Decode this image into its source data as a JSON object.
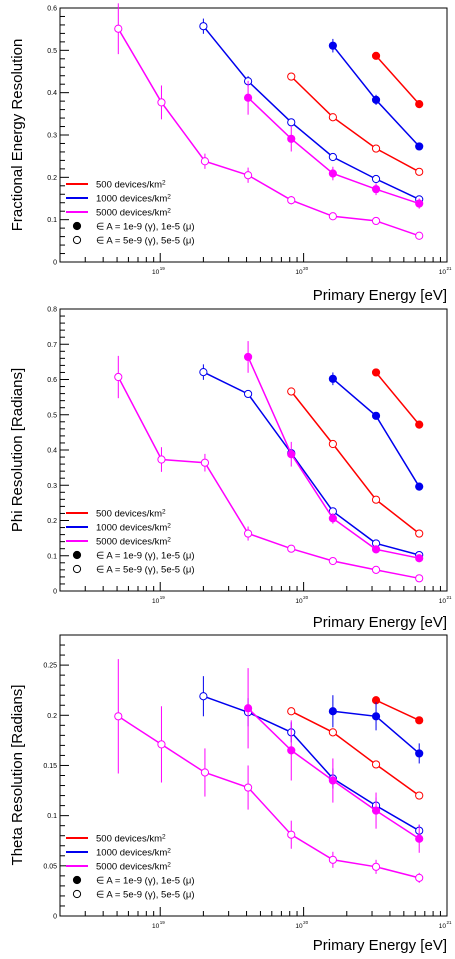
{
  "colors": {
    "red": "#ff0000",
    "blue": "#0000ee",
    "magenta": "#ff00ff",
    "axis": "#000000"
  },
  "chart_data": [
    {
      "type": "scatter",
      "xlabel": "Primary Energy [eV]",
      "ylabel": "Fractional Energy Resolution",
      "xscale": "log",
      "xlim": [
        2e+18,
        1e+21
      ],
      "ylim": [
        0,
        0.6
      ],
      "yticks": [
        "0",
        "0.1",
        "0.2",
        "0.3",
        "0.4",
        "0.5",
        "0.6"
      ],
      "yticks_values": [
        0,
        0.1,
        0.2,
        0.3,
        0.4,
        0.5,
        0.6
      ],
      "xticks": [
        "10",
        "10",
        "10"
      ],
      "xticks_exp": [
        "19",
        "20",
        "21"
      ],
      "xticks_values": [
        1e+19,
        1e+20,
        1e+21
      ],
      "legend_position": "bottom-left",
      "legend": [
        {
          "label": "500 devices/km",
          "sup": "2",
          "color": "#ff0000",
          "kind": "line"
        },
        {
          "label": "1000 devices/km",
          "sup": "2",
          "color": "#0000ee",
          "kind": "line"
        },
        {
          "label": "5000 devices/km",
          "sup": "2",
          "color": "#ff00ff",
          "kind": "line"
        },
        {
          "label": "∈ A = 1e-9 (γ), 1e-5 (μ)",
          "sup": "",
          "color": "#000000",
          "kind": "filled"
        },
        {
          "label": "∈ A = 5e-9 (γ), 5e-5 (μ)",
          "sup": "",
          "color": "#000000",
          "kind": "open"
        }
      ],
      "series": [
        {
          "color": "#ff0000",
          "filled": false,
          "x": [
            8.2e+19,
            1.6e+20,
            3.2e+20,
            6.4e+20
          ],
          "y": [
            0.438,
            0.342,
            0.268,
            0.213
          ],
          "err": [
            0,
            0,
            0,
            0
          ]
        },
        {
          "color": "#ff0000",
          "filled": true,
          "x": [
            3.2e+20,
            6.4e+20
          ],
          "y": [
            0.487,
            0.373
          ],
          "err": [
            0,
            0
          ]
        },
        {
          "color": "#0000ee",
          "filled": false,
          "x": [
            2e+19,
            4.1e+19,
            8.2e+19,
            1.6e+20,
            3.2e+20,
            6.4e+20
          ],
          "y": [
            0.557,
            0.427,
            0.33,
            0.248,
            0.196,
            0.148
          ],
          "err": [
            0.018,
            0.012,
            0,
            0,
            0,
            0
          ]
        },
        {
          "color": "#0000ee",
          "filled": true,
          "x": [
            1.6e+20,
            3.2e+20,
            6.4e+20
          ],
          "y": [
            0.511,
            0.383,
            0.273
          ],
          "err": [
            0.016,
            0.012,
            0
          ]
        },
        {
          "color": "#ff00ff",
          "filled": false,
          "x": [
            5.1e+18,
            1.02e+19,
            2.05e+19,
            4.1e+19,
            8.2e+19,
            1.6e+20,
            3.2e+20,
            6.4e+20
          ],
          "y": [
            0.551,
            0.377,
            0.238,
            0.205,
            0.146,
            0.108,
            0.097,
            0.062
          ],
          "err": [
            0.06,
            0.04,
            0.018,
            0.018,
            0.01,
            0.005,
            0.004,
            0.004
          ]
        },
        {
          "color": "#ff00ff",
          "filled": true,
          "x": [
            4.1e+19,
            8.2e+19,
            1.6e+20,
            3.2e+20,
            6.4e+20
          ],
          "y": [
            0.388,
            0.291,
            0.209,
            0.172,
            0.138
          ],
          "err": [
            0.04,
            0.03,
            0.016,
            0.014,
            0.012
          ]
        }
      ]
    },
    {
      "type": "scatter",
      "xlabel": "Primary Energy [eV]",
      "ylabel": "Phi Resolution [Radians]",
      "xscale": "log",
      "xlim": [
        2e+18,
        1e+21
      ],
      "ylim": [
        0,
        0.8
      ],
      "yticks": [
        "0",
        "0.1",
        "0.2",
        "0.3",
        "0.4",
        "0.5",
        "0.6",
        "0.7",
        "0.8"
      ],
      "yticks_values": [
        0,
        0.1,
        0.2,
        0.3,
        0.4,
        0.5,
        0.6,
        0.7,
        0.8
      ],
      "xticks": [
        "10",
        "10",
        "10"
      ],
      "xticks_exp": [
        "19",
        "20",
        "21"
      ],
      "xticks_values": [
        1e+19,
        1e+20,
        1e+21
      ],
      "legend_position": "bottom-left",
      "legend": [
        {
          "label": "500 devices/km",
          "sup": "2",
          "color": "#ff0000",
          "kind": "line"
        },
        {
          "label": "1000 devices/km",
          "sup": "2",
          "color": "#0000ee",
          "kind": "line"
        },
        {
          "label": "5000 devices/km",
          "sup": "2",
          "color": "#ff00ff",
          "kind": "line"
        },
        {
          "label": "∈ A = 1e-9 (γ), 1e-5 (μ)",
          "sup": "",
          "color": "#000000",
          "kind": "filled"
        },
        {
          "label": "∈ A = 5e-9 (γ), 5e-5 (μ)",
          "sup": "",
          "color": "#000000",
          "kind": "open"
        }
      ],
      "series": [
        {
          "color": "#ff0000",
          "filled": false,
          "x": [
            8.2e+19,
            1.6e+20,
            3.2e+20,
            6.4e+20
          ],
          "y": [
            0.566,
            0.417,
            0.259,
            0.163
          ],
          "err": [
            0,
            0,
            0,
            0
          ]
        },
        {
          "color": "#ff0000",
          "filled": true,
          "x": [
            3.2e+20,
            6.4e+20
          ],
          "y": [
            0.62,
            0.472
          ],
          "err": [
            0,
            0
          ]
        },
        {
          "color": "#0000ee",
          "filled": false,
          "x": [
            2e+19,
            4.1e+19,
            8.2e+19,
            1.6e+20,
            3.2e+20,
            6.4e+20
          ],
          "y": [
            0.621,
            0.559,
            0.391,
            0.226,
            0.135,
            0.102
          ],
          "err": [
            0.022,
            0,
            0,
            0,
            0,
            0
          ]
        },
        {
          "color": "#0000ee",
          "filled": true,
          "x": [
            1.6e+20,
            3.2e+20,
            6.4e+20
          ],
          "y": [
            0.602,
            0.497,
            0.296
          ],
          "err": [
            0.018,
            0,
            0
          ]
        },
        {
          "color": "#ff00ff",
          "filled": false,
          "x": [
            5.1e+18,
            1.02e+19,
            2.05e+19,
            4.1e+19,
            8.2e+19,
            1.6e+20,
            3.2e+20,
            6.4e+20
          ],
          "y": [
            0.607,
            0.373,
            0.364,
            0.163,
            0.12,
            0.085,
            0.06,
            0.036
          ],
          "err": [
            0.06,
            0.035,
            0.025,
            0.02,
            0.01,
            0.005,
            0.004,
            0.004
          ]
        },
        {
          "color": "#ff00ff",
          "filled": true,
          "x": [
            4.1e+19,
            8.2e+19,
            1.6e+20,
            3.2e+20,
            6.4e+20
          ],
          "y": [
            0.664,
            0.388,
            0.206,
            0.118,
            0.093
          ],
          "err": [
            0.045,
            0.035,
            0.015,
            0.01,
            0.008
          ]
        }
      ]
    },
    {
      "type": "scatter",
      "xlabel": "Primary Energy [eV]",
      "ylabel": "Theta Resolution [Radians]",
      "xscale": "log",
      "xlim": [
        2e+18,
        1e+21
      ],
      "ylim": [
        0,
        0.28
      ],
      "yticks": [
        "0",
        "0.05",
        "0.1",
        "0.15",
        "0.2",
        "0.25"
      ],
      "yticks_values": [
        0,
        0.05,
        0.1,
        0.15,
        0.2,
        0.25
      ],
      "xticks": [
        "10",
        "10",
        "10"
      ],
      "xticks_exp": [
        "19",
        "20",
        "21"
      ],
      "xticks_values": [
        1e+19,
        1e+20,
        1e+21
      ],
      "legend_position": "bottom-left",
      "legend": [
        {
          "label": "500 devices/km",
          "sup": "2",
          "color": "#ff0000",
          "kind": "line"
        },
        {
          "label": "1000 devices/km",
          "sup": "2",
          "color": "#0000ee",
          "kind": "line"
        },
        {
          "label": "5000 devices/km",
          "sup": "2",
          "color": "#ff00ff",
          "kind": "line"
        },
        {
          "label": "∈ A = 1e-9 (γ), 1e-5 (μ)",
          "sup": "",
          "color": "#000000",
          "kind": "filled"
        },
        {
          "label": "∈ A = 5e-9 (γ), 5e-5 (μ)",
          "sup": "",
          "color": "#000000",
          "kind": "open"
        }
      ],
      "series": [
        {
          "color": "#ff0000",
          "filled": false,
          "x": [
            8.2e+19,
            1.6e+20,
            3.2e+20,
            6.4e+20
          ],
          "y": [
            0.204,
            0.183,
            0.151,
            0.12
          ],
          "err": [
            0,
            0,
            0,
            0
          ]
        },
        {
          "color": "#ff0000",
          "filled": true,
          "x": [
            3.2e+20,
            6.4e+20
          ],
          "y": [
            0.215,
            0.195
          ],
          "err": [
            0.004,
            0
          ]
        },
        {
          "color": "#0000ee",
          "filled": false,
          "x": [
            2e+19,
            4.1e+19,
            8.2e+19,
            1.6e+20,
            3.2e+20,
            6.4e+20
          ],
          "y": [
            0.219,
            0.203,
            0.183,
            0.137,
            0.11,
            0.085
          ],
          "err": [
            0.02,
            0.014,
            0.01,
            0.01,
            0.008,
            0.006
          ]
        },
        {
          "color": "#0000ee",
          "filled": true,
          "x": [
            1.6e+20,
            3.2e+20,
            6.4e+20
          ],
          "y": [
            0.204,
            0.199,
            0.162
          ],
          "err": [
            0.016,
            0.014,
            0.01
          ]
        },
        {
          "color": "#ff00ff",
          "filled": false,
          "x": [
            5.1e+18,
            1.02e+19,
            2.05e+19,
            4.1e+19,
            8.2e+19,
            1.6e+20,
            3.2e+20,
            6.4e+20
          ],
          "y": [
            0.199,
            0.171,
            0.143,
            0.128,
            0.081,
            0.056,
            0.049,
            0.038
          ],
          "err": [
            0.057,
            0.038,
            0.024,
            0.022,
            0.014,
            0.008,
            0.007,
            0.005
          ]
        },
        {
          "color": "#ff00ff",
          "filled": true,
          "x": [
            4.1e+19,
            8.2e+19,
            1.6e+20,
            3.2e+20,
            6.4e+20
          ],
          "y": [
            0.207,
            0.165,
            0.135,
            0.105,
            0.077
          ],
          "err": [
            0.04,
            0.03,
            0.022,
            0.018,
            0.014
          ]
        }
      ]
    }
  ]
}
